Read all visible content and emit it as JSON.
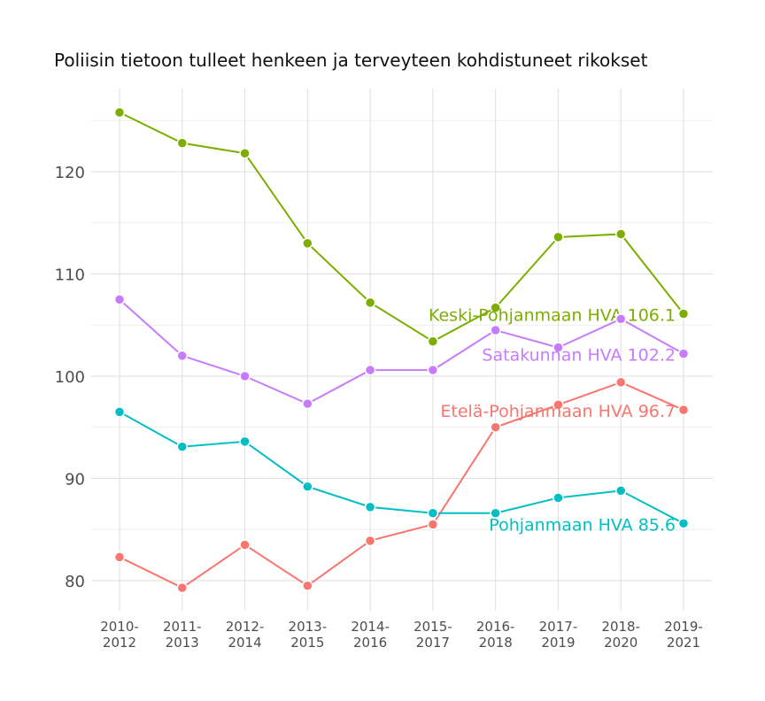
{
  "chart_data": {
    "type": "line",
    "title": "Poliisin tietoon tulleet henkeen ja terveyteen kohdistuneet rikokset",
    "xlabel": "",
    "ylabel": "",
    "categories": [
      "2010-\n2012",
      "2011-\n2013",
      "2012-\n2014",
      "2013-\n2015",
      "2014-\n2016",
      "2015-\n2017",
      "2016-\n2018",
      "2017-\n2019",
      "2018-\n2020",
      "2019-\n2021"
    ],
    "ylim": [
      77.5,
      128.5
    ],
    "yticks": [
      80,
      90,
      100,
      110,
      120
    ],
    "grid": true,
    "legend": "none (end labels)",
    "series": [
      {
        "name": "Keski-Pohjanmaan HVA",
        "end_label": "Keski-Pohjanmaan HVA 106.1",
        "color": "#7CAE00",
        "values": [
          125.8,
          122.8,
          121.8,
          113.0,
          107.2,
          103.4,
          106.7,
          113.6,
          113.9,
          106.1
        ]
      },
      {
        "name": "Satakunnan HVA",
        "end_label": "Satakunnan HVA 102.2",
        "color": "#C77CFF",
        "values": [
          107.5,
          102.0,
          100.0,
          97.3,
          100.6,
          100.6,
          104.5,
          102.8,
          105.6,
          102.2
        ]
      },
      {
        "name": "Etelä-Pohjanmaan HVA",
        "end_label": "Etelä-Pohjanmaan HVA 96.7",
        "color": "#F8766D",
        "values": [
          82.3,
          79.3,
          83.5,
          79.5,
          83.9,
          85.5,
          95.0,
          97.2,
          99.4,
          96.7
        ]
      },
      {
        "name": "Pohjanmaan HVA",
        "end_label": "Pohjanmaan HVA 85.6",
        "color": "#00BFC4",
        "values": [
          96.5,
          93.1,
          93.6,
          89.2,
          87.2,
          86.6,
          86.6,
          88.1,
          88.8,
          85.6
        ]
      }
    ]
  }
}
